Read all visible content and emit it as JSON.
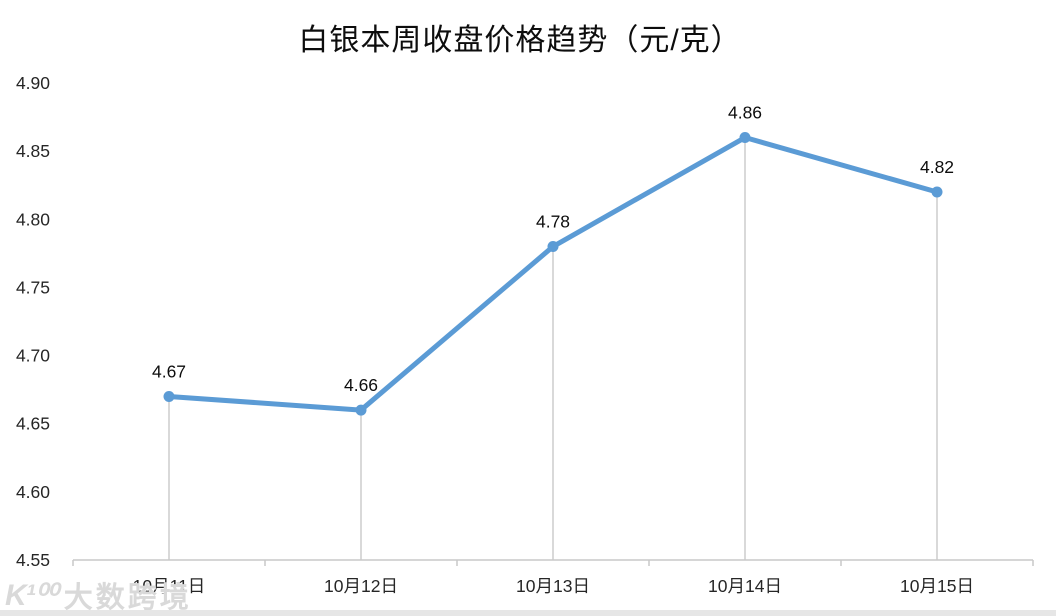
{
  "chart": {
    "title": "白银本周收盘价格趋势（元/克）"
  },
  "watermark": {
    "logo_icon": "K¹⁰⁰",
    "text": "大数跨境"
  },
  "chart_data": {
    "type": "line",
    "title": "白银本周收盘价格趋势（元/克）",
    "categories": [
      "10月11日",
      "10月12日",
      "10月13日",
      "10月14日",
      "10月15日"
    ],
    "values": [
      4.67,
      4.66,
      4.78,
      4.86,
      4.82
    ],
    "data_labels": [
      "4.67",
      "4.66",
      "4.78",
      "4.86",
      "4.82"
    ],
    "xlabel": "",
    "ylabel": "",
    "ylim": [
      4.55,
      4.9
    ],
    "ytick_step": 0.05,
    "yticks": [
      "4.90",
      "4.85",
      "4.80",
      "4.75",
      "4.70",
      "4.65",
      "4.60",
      "4.55"
    ],
    "grid": false,
    "legend_position": "none",
    "line_color": "#5B9BD5",
    "marker": "circle",
    "marker_color": "#5B9BD5",
    "drop_lines": true,
    "drop_line_color": "#d9d9d9",
    "axis_color": "#c9c9c9",
    "label_color": "#0d0d0d",
    "tick_label_color": "#262626"
  }
}
